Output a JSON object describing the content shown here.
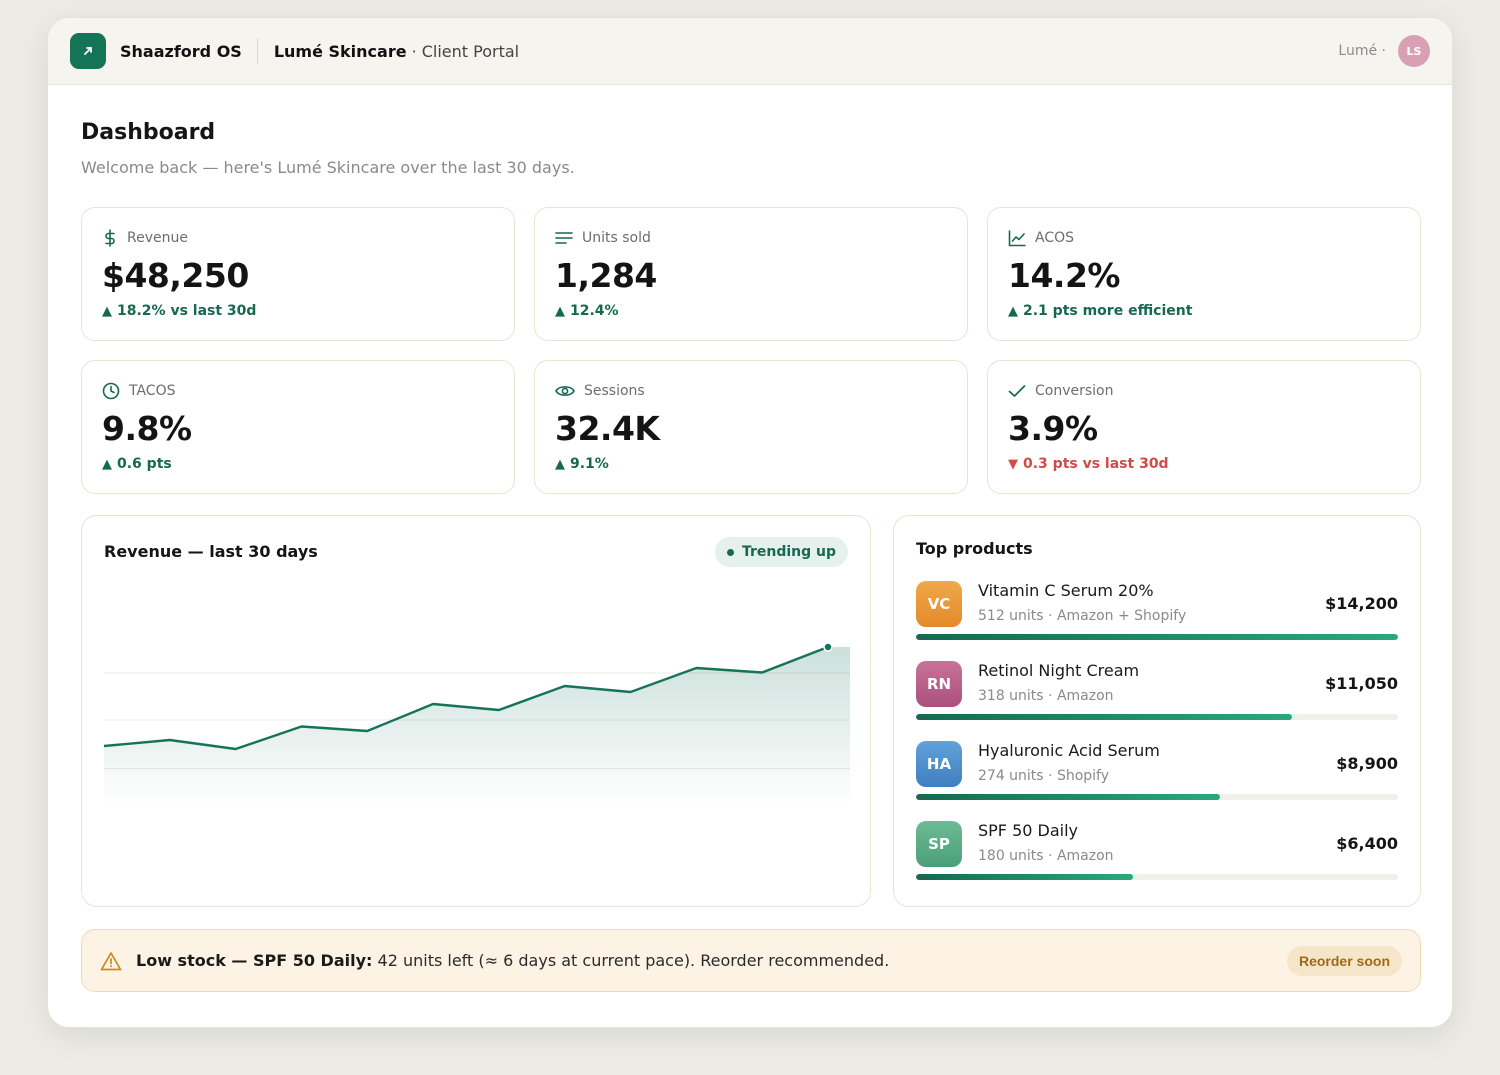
{
  "header": {
    "brand": "Shaazford OS",
    "client": "Lumé Skincare",
    "portal": "· Client Portal",
    "user_label": "Lumé ·",
    "avatar_initials": "LS"
  },
  "page": {
    "title": "Dashboard",
    "subtitle": "Welcome back — here's Lumé Skincare over the last 30 days."
  },
  "kpis": [
    {
      "label": "Revenue",
      "value": "$48,250",
      "delta": "18.2% vs last 30d",
      "trend": "up",
      "icon": "dollar-icon"
    },
    {
      "label": "Units sold",
      "value": "1,284",
      "delta": "12.4%",
      "trend": "up",
      "icon": "list-icon"
    },
    {
      "label": "ACOS",
      "value": "14.2%",
      "delta": "2.1 pts more efficient",
      "trend": "up",
      "icon": "line-chart-icon"
    },
    {
      "label": "TACOS",
      "value": "9.8%",
      "delta": "0.6 pts",
      "trend": "up",
      "icon": "clock-icon"
    },
    {
      "label": "Sessions",
      "value": "32.4K",
      "delta": "9.1%",
      "trend": "up",
      "icon": "eye-icon"
    },
    {
      "label": "Conversion",
      "value": "3.9%",
      "delta": "0.3 pts vs last 30d",
      "trend": "down",
      "icon": "check-icon"
    }
  ],
  "revenue_chart": {
    "title": "Revenue — last 30 days",
    "badge": "Trending up",
    "color": "#16735a"
  },
  "chart_data": {
    "type": "area",
    "title": "Revenue — last 30 days",
    "xlabel": "",
    "ylabel": "",
    "x": [
      1,
      2,
      3,
      4,
      5,
      6,
      7,
      8,
      9,
      10,
      11,
      12
    ],
    "series": [
      {
        "values": [
          20,
          24,
          18,
          33,
          30,
          48,
          44,
          60,
          56,
          72,
          69,
          86
        ]
      }
    ],
    "ylim": [
      0,
      100
    ],
    "grid": true
  },
  "top_products": {
    "title": "Top products",
    "items": [
      {
        "initials": "VC",
        "name": "Vitamin C Serum 20%",
        "meta": "512 units · Amazon + Shopify",
        "value": "$14,200",
        "share": 1.0,
        "color": "#e89a38"
      },
      {
        "initials": "RN",
        "name": "Retinol Night Cream",
        "meta": "318 units · Amazon",
        "value": "$11,050",
        "share": 0.78,
        "color": "#b9608a"
      },
      {
        "initials": "HA",
        "name": "Hyaluronic Acid Serum",
        "meta": "274 units · Shopify",
        "value": "$8,900",
        "share": 0.63,
        "color": "#4f8fcf"
      },
      {
        "initials": "SP",
        "name": "SPF 50 Daily",
        "meta": "180 units · Amazon",
        "value": "$6,400",
        "share": 0.45,
        "color": "#59ad86"
      }
    ]
  },
  "alert": {
    "strong": "Low stock — SPF 50 Daily:",
    "text": " 42 units left (≈ 6 days at current pace). Reorder recommended.",
    "button": "Reorder soon"
  }
}
